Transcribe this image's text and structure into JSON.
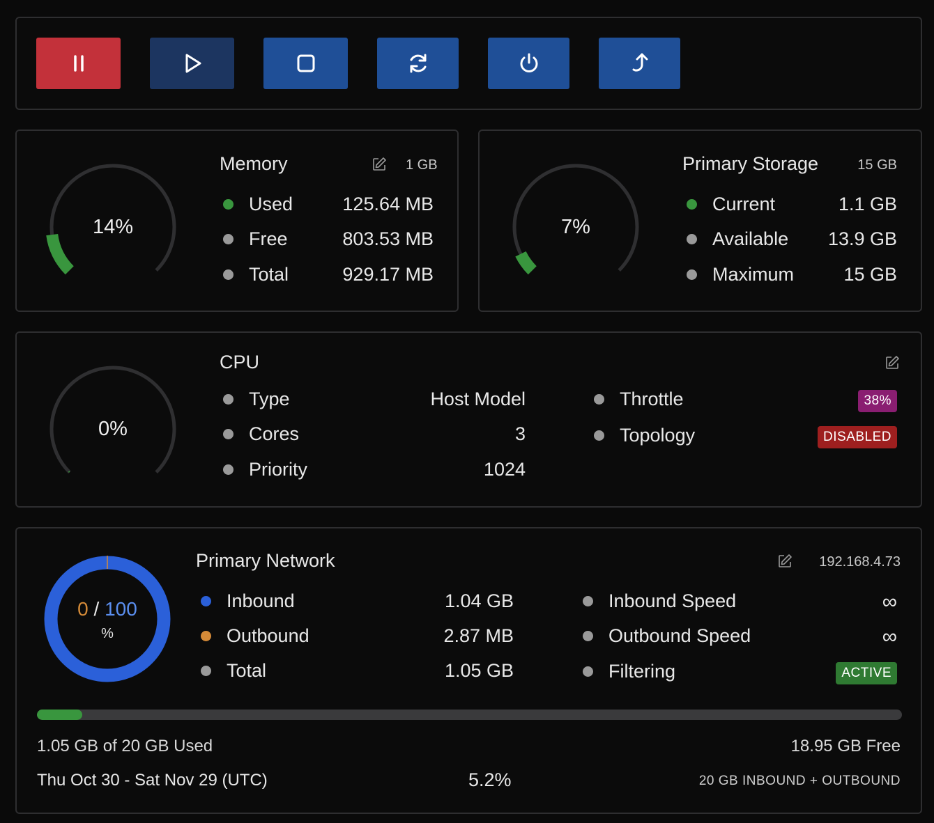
{
  "colors": {
    "pause": "#c3313a",
    "play": "#1c3560",
    "primary": "#1f4f97",
    "green": "#39963e",
    "blue": "#2b60d9",
    "orange": "#d48a38",
    "gray": "#9a9a9a",
    "badge_purple": "#8a1e71",
    "badge_red": "#9e1f1f",
    "badge_green": "#2f7a32"
  },
  "toolbar": {
    "buttons": [
      {
        "name": "pause-button",
        "icon": "pause-icon"
      },
      {
        "name": "play-button",
        "icon": "play-icon"
      },
      {
        "name": "stop-button",
        "icon": "stop-icon"
      },
      {
        "name": "restart-button",
        "icon": "refresh-icon"
      },
      {
        "name": "power-button",
        "icon": "power-icon"
      },
      {
        "name": "upload-button",
        "icon": "upload-icon"
      }
    ]
  },
  "memory": {
    "title": "Memory",
    "limit": "1 GB",
    "percent_label": "14%",
    "percent": 14,
    "rows": [
      {
        "label": "Used",
        "value": "125.64 MB"
      },
      {
        "label": "Free",
        "value": "803.53 MB"
      },
      {
        "label": "Total",
        "value": "929.17 MB"
      }
    ]
  },
  "storage": {
    "title": "Primary Storage",
    "limit": "15 GB",
    "percent_label": "7%",
    "percent": 7,
    "rows": [
      {
        "label": "Current",
        "value": "1.1 GB"
      },
      {
        "label": "Available",
        "value": "13.9 GB"
      },
      {
        "label": "Maximum",
        "value": "15 GB"
      }
    ]
  },
  "cpu": {
    "title": "CPU",
    "percent_label": "0%",
    "percent": 0,
    "rows": [
      {
        "label": "Type",
        "value": "Host Model"
      },
      {
        "label": "Cores",
        "value": "3"
      },
      {
        "label": "Priority",
        "value": "1024"
      }
    ],
    "right_rows": [
      {
        "label": "Throttle",
        "badge": "38%"
      },
      {
        "label": "Topology",
        "badge": "DISABLED"
      }
    ]
  },
  "network": {
    "title": "Primary Network",
    "ip": "192.168.4.73",
    "donut": {
      "value": "0",
      "sep": "/",
      "max": "100",
      "unit": "%"
    },
    "rows": [
      {
        "label": "Inbound",
        "value": "1.04 GB"
      },
      {
        "label": "Outbound",
        "value": "2.87 MB"
      },
      {
        "label": "Total",
        "value": "1.05 GB"
      }
    ],
    "right_rows": [
      {
        "label": "Inbound Speed",
        "value": "∞"
      },
      {
        "label": "Outbound Speed",
        "value": "∞"
      },
      {
        "label": "Filtering",
        "badge": "ACTIVE"
      }
    ],
    "usage_fraction": 0.0525,
    "used_text": "1.05 GB of 20 GB Used",
    "free_text": "18.95 GB Free",
    "period": "Thu Oct 30 - Sat Nov 29 (UTC)",
    "percent_used": "5.2%",
    "quota_note": "20 GB INBOUND + OUTBOUND"
  }
}
